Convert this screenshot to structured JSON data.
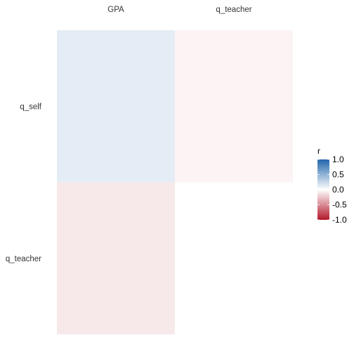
{
  "chart_data": {
    "type": "heatmap",
    "title": "",
    "x_categories": [
      "GPA",
      "q_teacher"
    ],
    "y_categories": [
      "q_self",
      "q_teacher"
    ],
    "x_axis_position": "top",
    "cells": [
      {
        "x": "GPA",
        "y": "q_self",
        "value": 0.12
      },
      {
        "x": "q_teacher",
        "y": "q_self",
        "value": -0.05
      },
      {
        "x": "GPA",
        "y": "q_teacher",
        "value": -0.1
      }
    ],
    "missing_cells": [
      {
        "x": "q_teacher",
        "y": "q_teacher"
      }
    ],
    "legend": {
      "title": "r",
      "placement": "right",
      "range": [
        -1,
        1
      ],
      "ticks": [
        1.0,
        0.5,
        0.0,
        -0.5,
        -1.0
      ],
      "tick_labels": [
        "1.0",
        "0.5",
        "0.0",
        "-0.5",
        "-1.0"
      ],
      "colors": {
        "high": "#2166ac",
        "mid": "#ffffff",
        "low": "#b2182b"
      }
    },
    "grid": false
  }
}
